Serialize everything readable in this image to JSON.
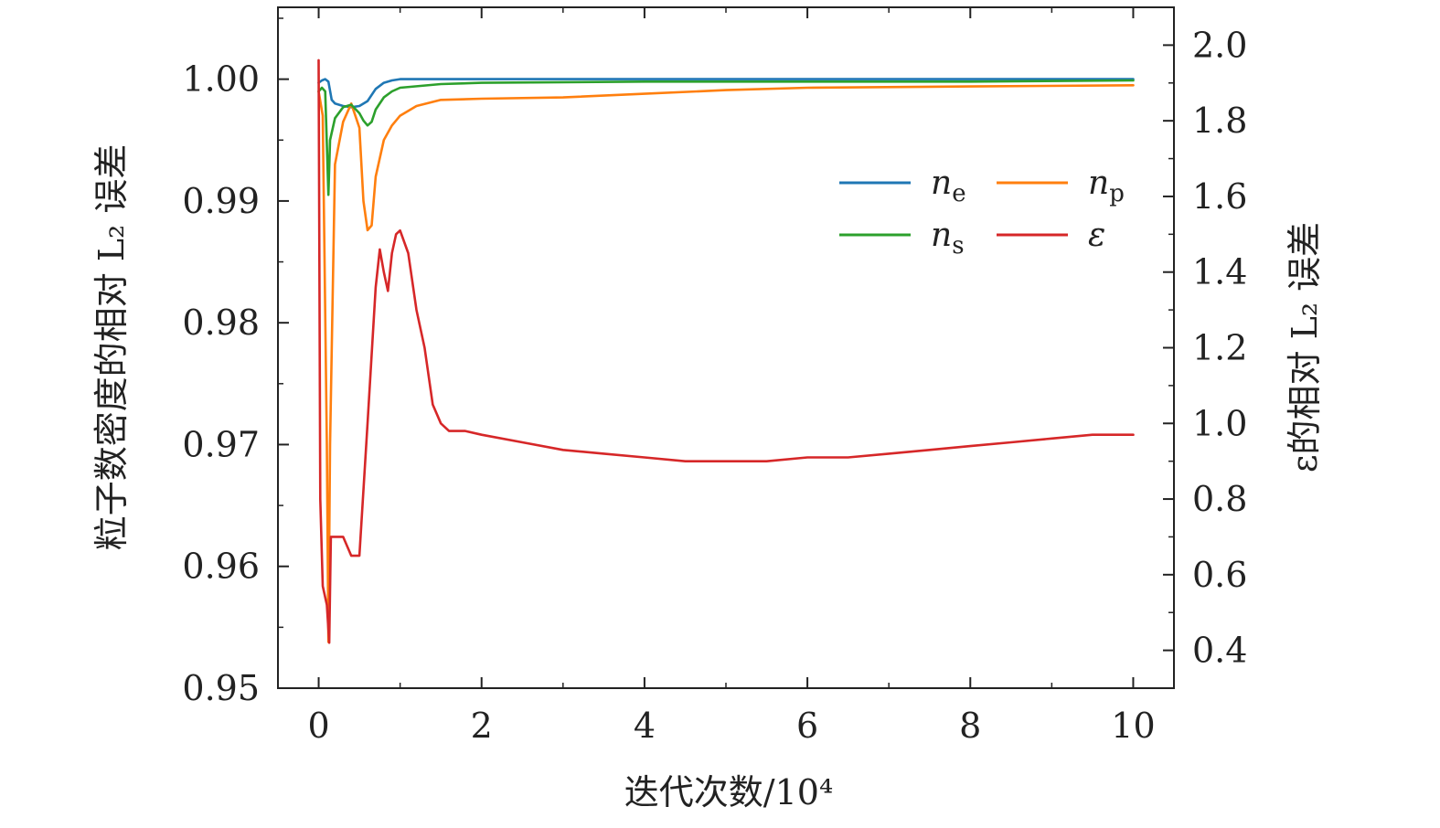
{
  "chart_data": {
    "type": "line",
    "xlabel": "迭代次数/10⁴",
    "ylabel_left": "粒子数密度的相对 L₂ 误差",
    "ylabel_right": "ε的相对 L₂ 误差",
    "xlim": [
      -0.5,
      10.5
    ],
    "ylim_left": [
      0.95,
      1.0059
    ],
    "ylim_right": [
      0.3,
      2.1
    ],
    "x_ticks": [
      "0",
      "2",
      "4",
      "6",
      "8",
      "10"
    ],
    "y_left_ticks": [
      "0.95",
      "0.96",
      "0.97",
      "0.98",
      "0.99",
      "1.00"
    ],
    "y_right_ticks": [
      "0.4",
      "0.6",
      "0.8",
      "1.0",
      "1.2",
      "1.4",
      "1.6",
      "1.8",
      "2.0"
    ],
    "legend_position": "upper-right",
    "series": [
      {
        "name": "n_e",
        "label_main": "n",
        "label_sub": "e",
        "axis": "left",
        "color": "#1f77b4",
        "x": [
          0.0,
          0.04,
          0.08,
          0.12,
          0.16,
          0.2,
          0.3,
          0.4,
          0.5,
          0.6,
          0.7,
          0.8,
          0.9,
          1.0,
          1.5,
          2,
          4,
          6,
          8,
          10
        ],
        "y": [
          0.9997,
          0.9999,
          1.0,
          0.9998,
          0.9983,
          0.998,
          0.9978,
          0.9977,
          0.9978,
          0.9982,
          0.9992,
          0.9997,
          0.9999,
          1.0,
          1.0,
          1.0,
          1.0,
          1.0,
          1.0,
          1.0
        ]
      },
      {
        "name": "n_p",
        "label_main": "n",
        "label_sub": "p",
        "axis": "left",
        "color": "#ff7f0e",
        "x": [
          0.0,
          0.05,
          0.1,
          0.12,
          0.14,
          0.2,
          0.3,
          0.4,
          0.5,
          0.55,
          0.6,
          0.65,
          0.7,
          0.8,
          0.9,
          1.0,
          1.2,
          1.5,
          2,
          3,
          4,
          5,
          6,
          8,
          10
        ],
        "y": [
          0.999,
          0.997,
          0.97,
          0.9538,
          0.97,
          0.993,
          0.9965,
          0.998,
          0.996,
          0.99,
          0.9876,
          0.988,
          0.992,
          0.995,
          0.9962,
          0.997,
          0.9978,
          0.9983,
          0.9984,
          0.9985,
          0.9988,
          0.9991,
          0.9993,
          0.9994,
          0.9995
        ]
      },
      {
        "name": "n_s",
        "label_main": "n",
        "label_sub": "s",
        "axis": "left",
        "color": "#2ca02c",
        "x": [
          0.0,
          0.04,
          0.08,
          0.12,
          0.14,
          0.2,
          0.3,
          0.4,
          0.5,
          0.55,
          0.6,
          0.65,
          0.7,
          0.8,
          0.9,
          1.0,
          1.5,
          2,
          4,
          6,
          8,
          10
        ],
        "y": [
          0.999,
          0.9993,
          0.999,
          0.9905,
          0.995,
          0.9968,
          0.9977,
          0.9979,
          0.9972,
          0.9966,
          0.9962,
          0.9965,
          0.9975,
          0.9985,
          0.999,
          0.9993,
          0.9996,
          0.9997,
          0.9998,
          0.9998,
          0.9998,
          0.9999
        ]
      },
      {
        "name": "ε",
        "label_main": "ε",
        "label_sub": "",
        "axis": "right",
        "color": "#d62728",
        "x": [
          0.0,
          0.02,
          0.05,
          0.1,
          0.13,
          0.15,
          0.2,
          0.3,
          0.4,
          0.5,
          0.6,
          0.7,
          0.75,
          0.8,
          0.85,
          0.9,
          0.95,
          1.0,
          1.1,
          1.2,
          1.3,
          1.4,
          1.5,
          1.6,
          1.8,
          2.0,
          2.5,
          3.0,
          3.5,
          4.0,
          4.5,
          5.0,
          5.5,
          6.0,
          6.5,
          7.0,
          7.5,
          8.0,
          8.5,
          9.0,
          9.5,
          10.0
        ],
        "y": [
          1.96,
          0.8,
          0.57,
          0.52,
          0.42,
          0.7,
          0.7,
          0.7,
          0.65,
          0.65,
          1.0,
          1.36,
          1.46,
          1.4,
          1.35,
          1.45,
          1.5,
          1.51,
          1.45,
          1.3,
          1.2,
          1.05,
          1.0,
          0.98,
          0.98,
          0.97,
          0.95,
          0.93,
          0.92,
          0.91,
          0.9,
          0.9,
          0.9,
          0.91,
          0.91,
          0.92,
          0.93,
          0.94,
          0.95,
          0.96,
          0.97,
          0.97
        ]
      }
    ]
  }
}
